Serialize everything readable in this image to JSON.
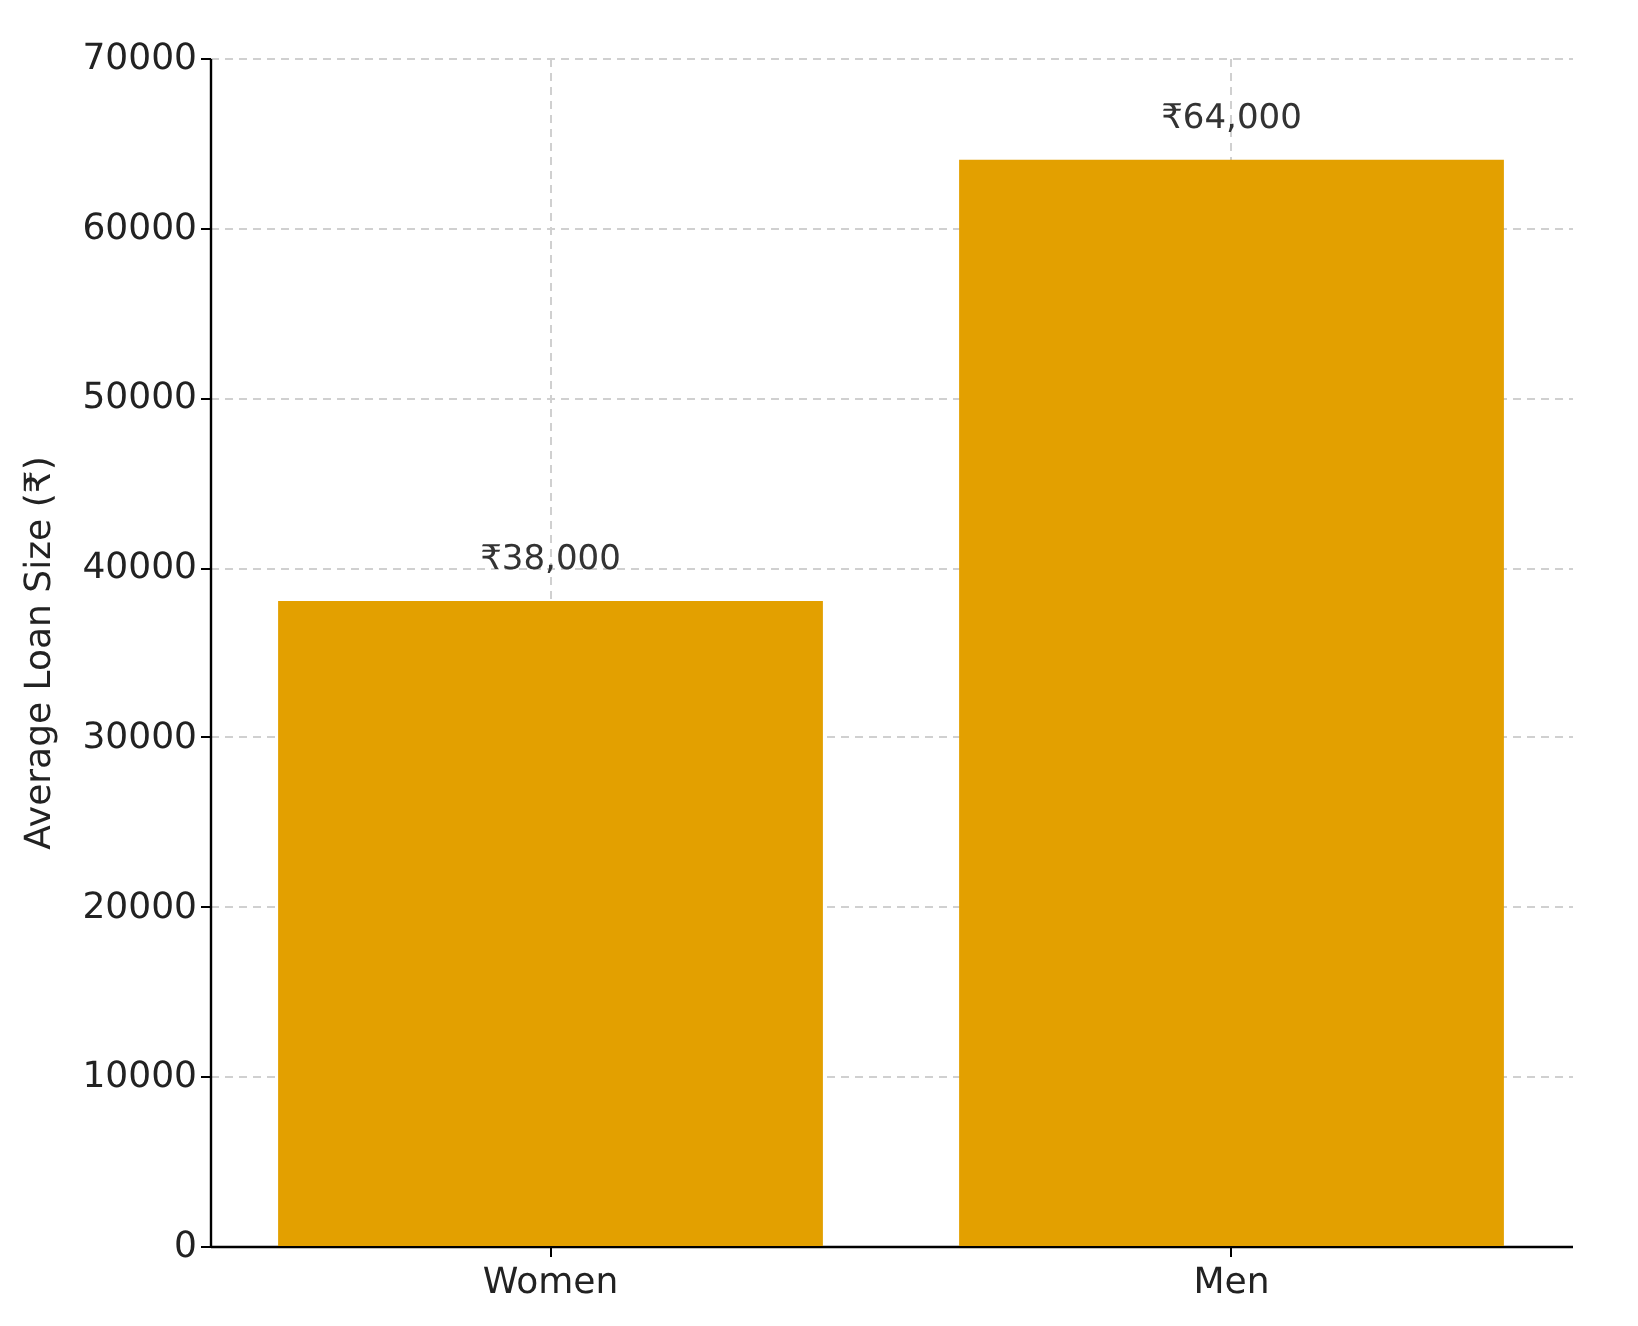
{
  "chart_data": {
    "type": "bar",
    "ylabel": "Average Loan Size (₹)",
    "categories": [
      "Women",
      "Men"
    ],
    "values": [
      38000,
      64000
    ],
    "value_labels": [
      "₹38,000",
      "₹64,000"
    ],
    "color": "#e3a000",
    "ylim": [
      0,
      70000
    ],
    "yticks": [
      0,
      10000,
      20000,
      30000,
      40000,
      50000,
      60000,
      70000
    ],
    "grid": true
  }
}
